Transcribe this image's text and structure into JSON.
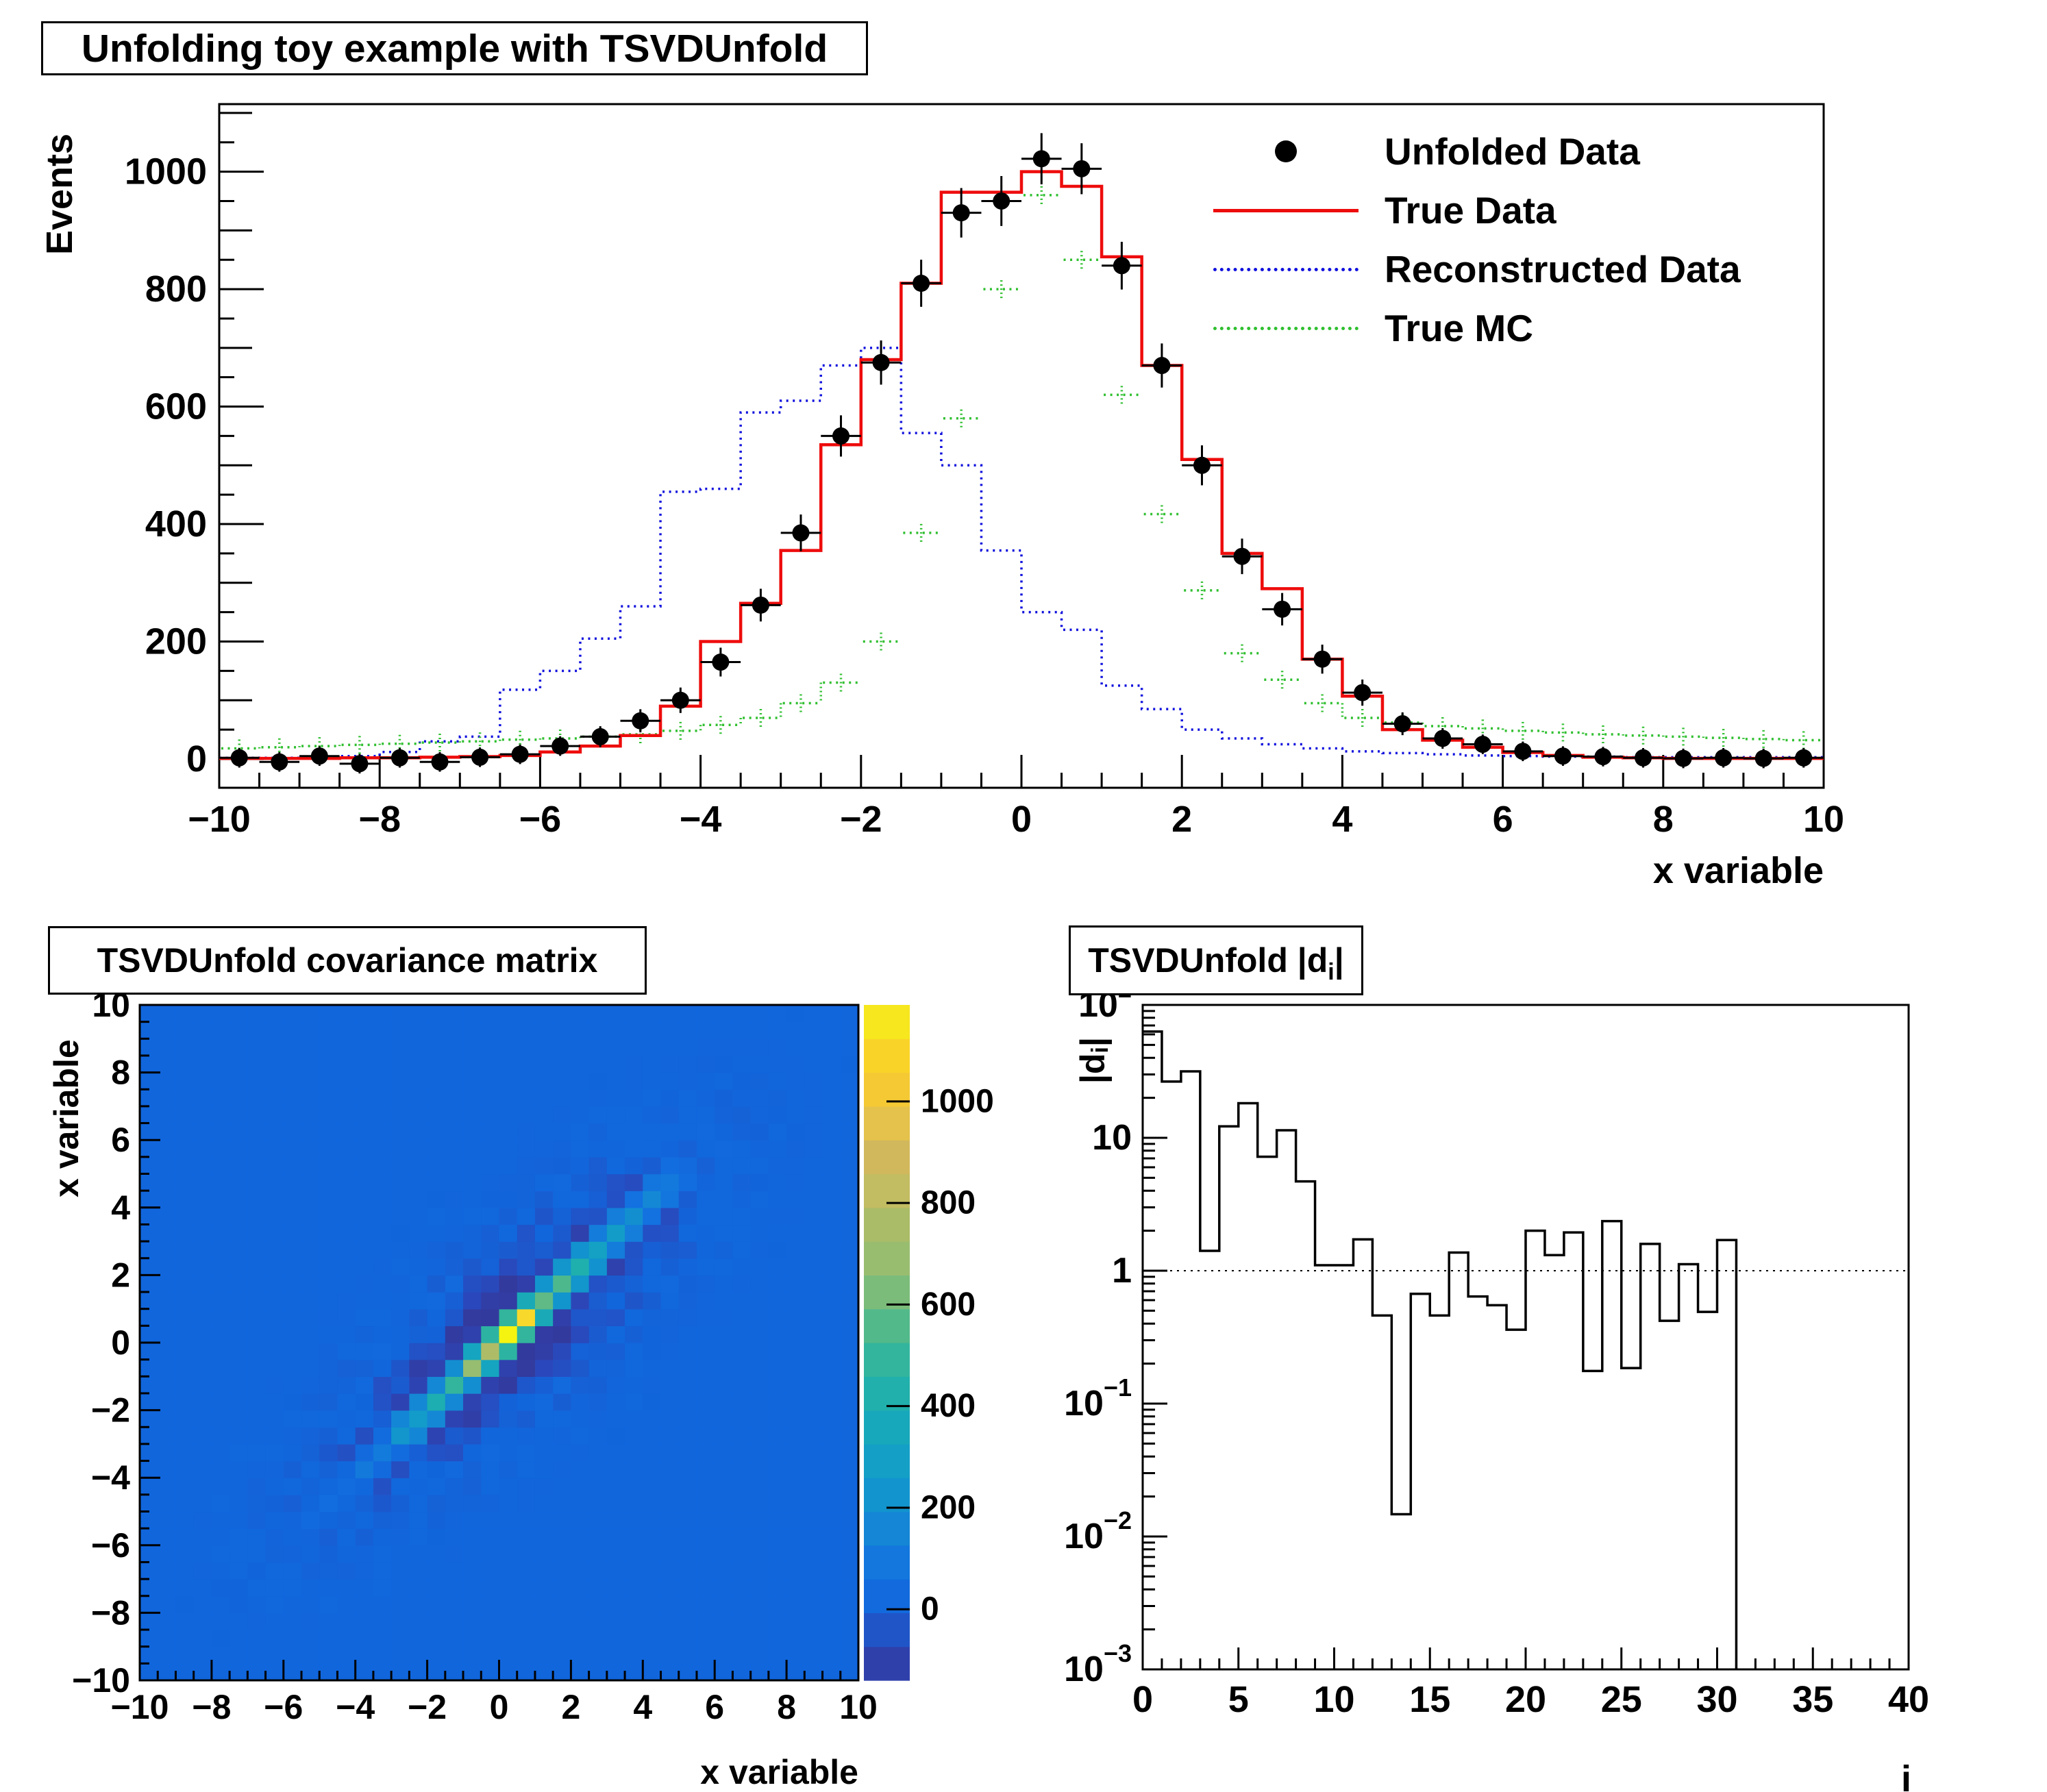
{
  "page": {
    "background": "#ffffff"
  },
  "chart_data": [
    {
      "type": "line",
      "title": "Unfolding toy example with TSVDUnfold",
      "xlabel": "x variable",
      "ylabel": "Events",
      "x_range": [
        -10,
        10
      ],
      "ylim": [
        -49,
        1115
      ],
      "bins": 40,
      "bin_width": 0.5,
      "first_bin_center": -9.75,
      "x_tick_values": [
        -10,
        -8,
        -6,
        -4,
        -2,
        0,
        2,
        4,
        6,
        8,
        10
      ],
      "y_tick_values": [
        0,
        200,
        400,
        600,
        800,
        1000
      ],
      "grid": false,
      "legend_position": "top-right",
      "series": [
        {
          "name": "Unfolded Data",
          "style": "marker",
          "color": "#000000",
          "values": [
            2,
            -5,
            5,
            -8,
            2,
            -5,
            3,
            8,
            22,
            38,
            65,
            100,
            165,
            262,
            385,
            550,
            675,
            810,
            930,
            950,
            1022,
            1005,
            840,
            670,
            500,
            345,
            255,
            170,
            113,
            60,
            35,
            25,
            13,
            5,
            4,
            2,
            1,
            2,
            1,
            2
          ]
        },
        {
          "name": "True Data",
          "style": "solid",
          "color": "#ee0c0c",
          "values": [
            1,
            1,
            1,
            2,
            2,
            3,
            4,
            6,
            12,
            22,
            40,
            90,
            200,
            265,
            355,
            535,
            680,
            810,
            965,
            965,
            1000,
            975,
            855,
            670,
            510,
            350,
            290,
            170,
            107,
            50,
            32,
            20,
            11,
            6,
            3,
            2,
            1,
            1,
            1,
            1
          ]
        },
        {
          "name": "Reconstructed Data",
          "style": "dotted",
          "color": "#1111dd",
          "values": [
            2,
            2,
            3,
            5,
            12,
            30,
            38,
            118,
            150,
            205,
            260,
            455,
            460,
            590,
            610,
            670,
            700,
            555,
            500,
            355,
            250,
            220,
            125,
            85,
            50,
            35,
            25,
            18,
            13,
            10,
            8,
            6,
            5,
            4,
            4,
            3,
            3,
            3,
            3,
            3
          ]
        },
        {
          "name": "True MC",
          "style": "dotted",
          "color": "#2fbf2f",
          "values": [
            18,
            20,
            22,
            24,
            26,
            28,
            30,
            33,
            35,
            38,
            42,
            48,
            58,
            70,
            95,
            130,
            200,
            385,
            580,
            800,
            960,
            850,
            620,
            417,
            287,
            180,
            135,
            95,
            70,
            62,
            56,
            52,
            48,
            45,
            42,
            40,
            38,
            36,
            34,
            32
          ]
        }
      ]
    },
    {
      "type": "heatmap",
      "title": "TSVDUnfold covariance matrix",
      "xlabel": "x variable",
      "ylabel": "x variable",
      "x_range": [
        -10,
        10
      ],
      "y_range": [
        -10,
        10
      ],
      "bins": 40,
      "z_range": [
        -140,
        1190
      ],
      "colorbar_ticks": [
        0,
        200,
        400,
        600,
        800,
        1000
      ],
      "palette_stops": [
        [
          0.0,
          "#333a9d"
        ],
        [
          0.05,
          "#2c46b8"
        ],
        [
          0.105,
          "#1166dc"
        ],
        [
          0.16,
          "#1372e0"
        ],
        [
          0.22,
          "#1485d6"
        ],
        [
          0.28,
          "#1295cd"
        ],
        [
          0.35,
          "#14a4c2"
        ],
        [
          0.42,
          "#1fb0ae"
        ],
        [
          0.48,
          "#35b59b"
        ],
        [
          0.54,
          "#5cba86"
        ],
        [
          0.6,
          "#92bd72"
        ],
        [
          0.66,
          "#a2bc6a"
        ],
        [
          0.72,
          "#c0bc62"
        ],
        [
          0.78,
          "#d4b85c"
        ],
        [
          0.84,
          "#e9c545"
        ],
        [
          0.9,
          "#fbcc27"
        ],
        [
          0.95,
          "#f8d92b"
        ],
        [
          1.0,
          "#f4f410"
        ]
      ],
      "diagonal_profile": {
        "first_center": -5.75,
        "bin_width": 0.5,
        "values": [
          0,
          30,
          45,
          60,
          90,
          140,
          230,
          300,
          390,
          480,
          650,
          820,
          1165,
          1050,
          650,
          500,
          370,
          330,
          290,
          230,
          160,
          90,
          40,
          0
        ]
      },
      "offdiag_fraction_by_bin_distance": [
        1,
        0.45,
        -0.19,
        -0.14,
        -0.07,
        -0.03,
        0
      ],
      "noise": {
        "amplitude": 80,
        "sigma_u": 3.2,
        "sigma_v": 2.2,
        "center": 0.3
      }
    },
    {
      "type": "step-log",
      "title_pre": "TSVDUnfold |d",
      "title_sub": "i",
      "title_post": "|",
      "xlabel": "i",
      "ylabel_pre": "|d",
      "ylabel_sub": "i",
      "ylabel_post": "|",
      "x_range": [
        0,
        40
      ],
      "x_tick_values": [
        0,
        5,
        10,
        15,
        20,
        25,
        30,
        35,
        40
      ],
      "y_log_range": [
        -3,
        2
      ],
      "y_tick_exponents": [
        2,
        1,
        0,
        -1,
        -2,
        -3
      ],
      "reference_line": 1,
      "values": [
        63,
        26.5,
        31.6,
        1.41,
        12.2,
        18.2,
        7.2,
        11.4,
        4.7,
        1.1,
        1.1,
        1.72,
        0.46,
        0.0147,
        0.67,
        0.46,
        1.37,
        0.64,
        0.55,
        0.36,
        2.0,
        1.31,
        1.94,
        0.176,
        2.36,
        0.185,
        1.59,
        0.42,
        1.12,
        0.49,
        1.7,
        0,
        0,
        0,
        0,
        0,
        0,
        0,
        0,
        0
      ]
    }
  ]
}
